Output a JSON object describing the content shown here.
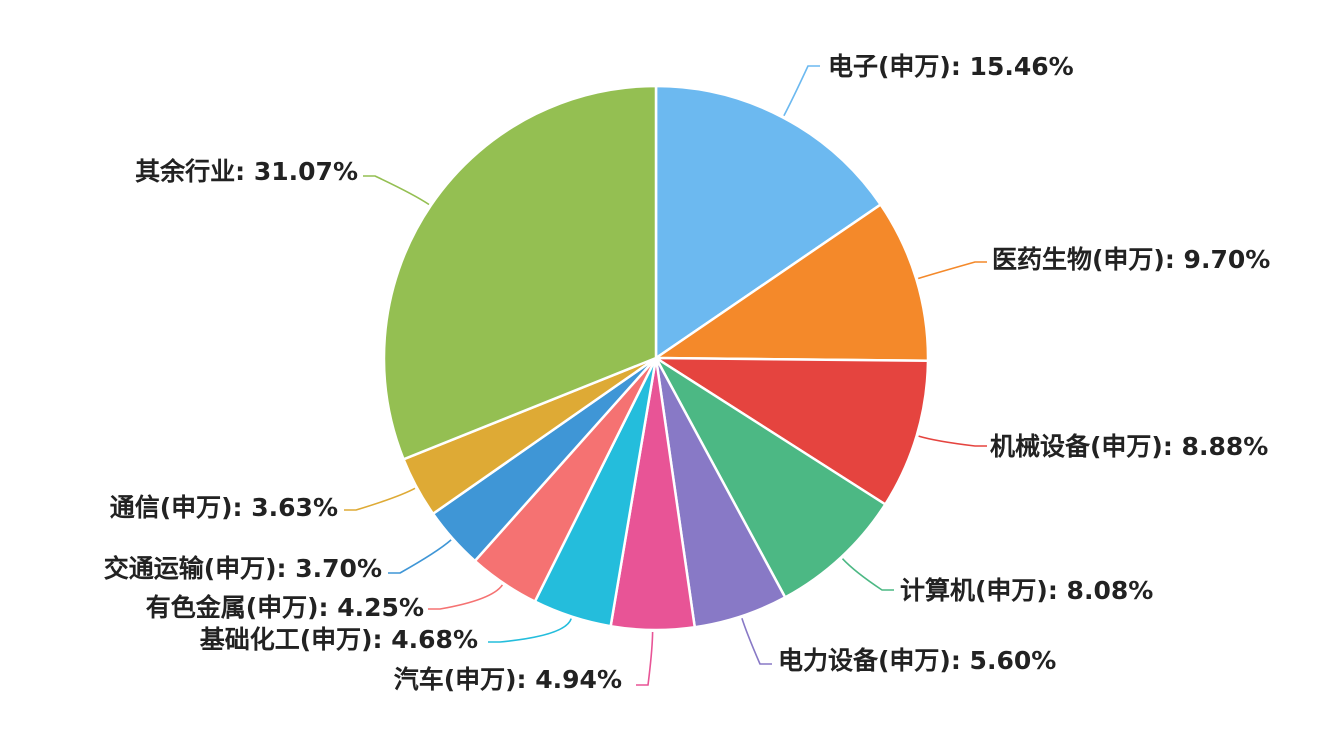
{
  "chart_data": {
    "type": "pie",
    "title": "",
    "slices": [
      {
        "label": "电子(申万)",
        "value": 15.46,
        "display": "15.46%",
        "color": "#6cb9f0"
      },
      {
        "label": "医药生物(申万)",
        "value": 9.7,
        "display": "9.70%",
        "color": "#f4892a"
      },
      {
        "label": "机械设备(申万)",
        "value": 8.88,
        "display": "8.88%",
        "color": "#e5443f"
      },
      {
        "label": "计算机(申万)",
        "value": 8.08,
        "display": "8.08%",
        "color": "#4cb884"
      },
      {
        "label": "电力设备(申万)",
        "value": 5.6,
        "display": "5.60%",
        "color": "#8879c6"
      },
      {
        "label": "汽车(申万)",
        "value": 4.94,
        "display": "4.94%",
        "color": "#e85496"
      },
      {
        "label": "基础化工(申万)",
        "value": 4.68,
        "display": "4.68%",
        "color": "#24bddc"
      },
      {
        "label": "有色金属(申万)",
        "value": 4.25,
        "display": "4.25%",
        "color": "#f57272"
      },
      {
        "label": "交通运输(申万)",
        "value": 3.7,
        "display": "3.70%",
        "color": "#3f96d6"
      },
      {
        "label": "通信(申万)",
        "value": 3.63,
        "display": "3.63%",
        "color": "#deaa35"
      },
      {
        "label": "其余行业",
        "value": 31.07,
        "display": "31.07%",
        "color": "#94bf52"
      }
    ],
    "start_angle": "12 o'clock",
    "direction": "clockwise",
    "legend": "none",
    "labels": "outside with leader lines"
  }
}
